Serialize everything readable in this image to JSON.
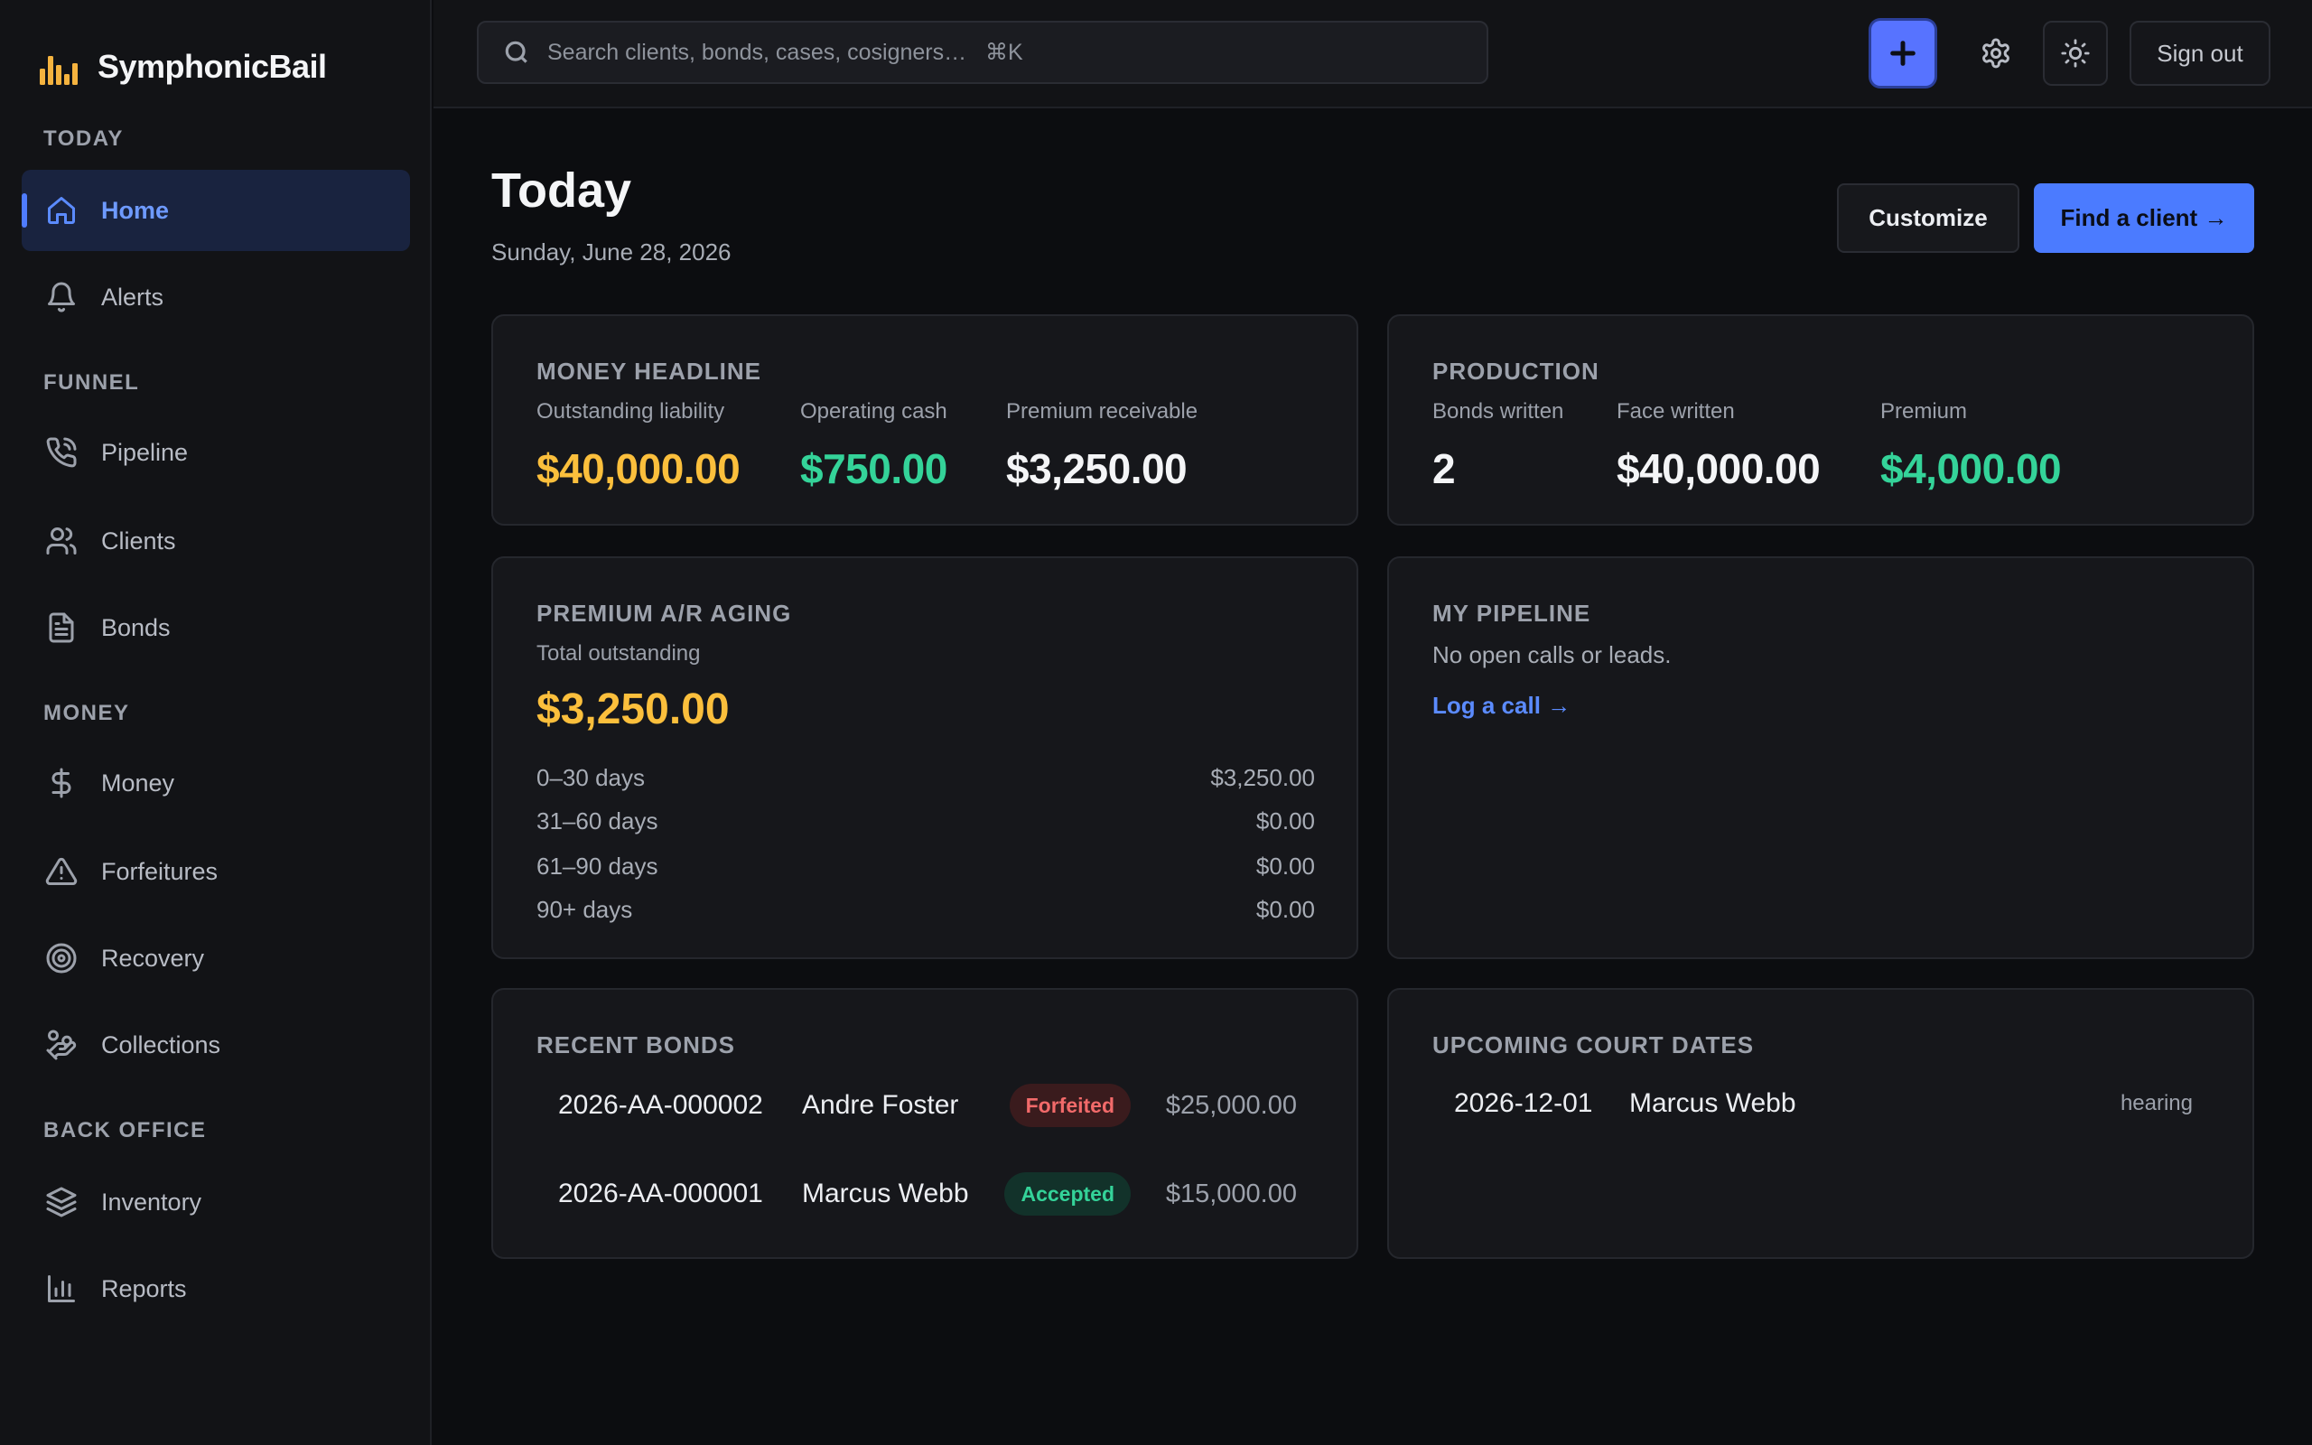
{
  "brand": {
    "name": "SymphonicBail",
    "accent": "#f5b33f"
  },
  "sidebar": {
    "sections": [
      "TODAY",
      "FUNNEL",
      "MONEY",
      "BACK OFFICE"
    ],
    "items": [
      {
        "label": "Home",
        "icon": "home-icon",
        "active": true
      },
      {
        "label": "Alerts",
        "icon": "bell-icon"
      },
      {
        "label": "Pipeline",
        "icon": "phone-icon"
      },
      {
        "label": "Clients",
        "icon": "users-icon"
      },
      {
        "label": "Bonds",
        "icon": "file-icon"
      },
      {
        "label": "Money",
        "icon": "dollar-icon"
      },
      {
        "label": "Forfeitures",
        "icon": "warning-icon"
      },
      {
        "label": "Recovery",
        "icon": "target-icon"
      },
      {
        "label": "Collections",
        "icon": "hand-coins-icon"
      },
      {
        "label": "Inventory",
        "icon": "layers-icon"
      },
      {
        "label": "Reports",
        "icon": "bar-chart-icon"
      }
    ]
  },
  "topbar": {
    "search_placeholder": "Search clients, bonds, cases, cosigners…   ⌘K",
    "sign_out": "Sign out"
  },
  "header": {
    "title": "Today",
    "date": "Sunday, June 28, 2026",
    "customize": "Customize",
    "find_client": "Find a client →"
  },
  "money_headline": {
    "title": "MONEY HEADLINE",
    "stats": [
      {
        "label": "Outstanding liability",
        "value": "$40,000.00"
      },
      {
        "label": "Operating cash",
        "value": "$750.00"
      },
      {
        "label": "Premium receivable",
        "value": "$3,250.00"
      }
    ]
  },
  "production": {
    "title": "PRODUCTION",
    "stats": [
      {
        "label": "Bonds written",
        "value": "2"
      },
      {
        "label": "Face written",
        "value": "$40,000.00"
      },
      {
        "label": "Premium",
        "value": "$4,000.00"
      }
    ]
  },
  "aging": {
    "title": "PREMIUM A/R AGING",
    "total_label": "Total outstanding",
    "total": "$3,250.00",
    "rows": [
      {
        "label": "0–30 days",
        "value": "$3,250.00"
      },
      {
        "label": "31–60 days",
        "value": "$0.00"
      },
      {
        "label": "61–90 days",
        "value": "$0.00"
      },
      {
        "label": "90+ days",
        "value": "$0.00"
      }
    ]
  },
  "pipeline": {
    "title": "MY PIPELINE",
    "empty": "No open calls or leads.",
    "log_call": "Log a call →"
  },
  "recent_bonds": {
    "title": "RECENT BONDS",
    "rows": [
      {
        "number": "2026-AA-000002",
        "client": "Andre Foster",
        "status": "Forfeited",
        "amount": "$25,000.00"
      },
      {
        "number": "2026-AA-000001",
        "client": "Marcus Webb",
        "status": "Accepted",
        "amount": "$15,000.00"
      }
    ]
  },
  "court_dates": {
    "title": "UPCOMING COURT DATES",
    "rows": [
      {
        "date": "2026-12-01",
        "client": "Marcus Webb",
        "type": "hearing"
      }
    ]
  }
}
